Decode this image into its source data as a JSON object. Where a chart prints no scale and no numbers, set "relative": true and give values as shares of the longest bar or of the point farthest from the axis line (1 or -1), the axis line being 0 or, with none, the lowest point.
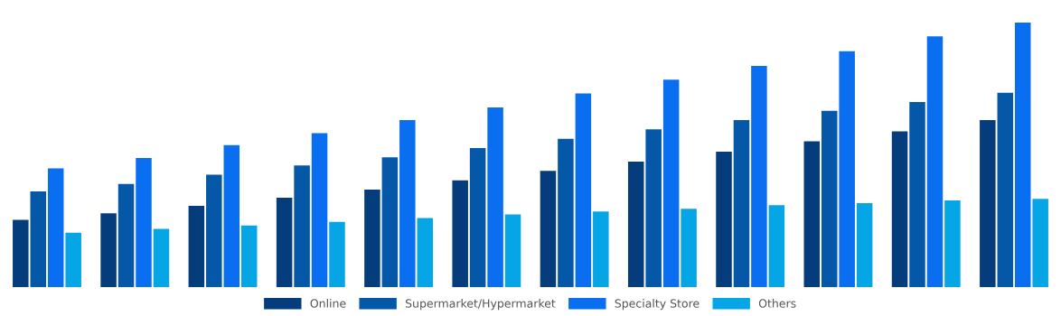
{
  "chart_data": {
    "type": "bar",
    "relative": true,
    "legend": "bottom",
    "grid": false,
    "categories": [
      null,
      null,
      null,
      null,
      null,
      null,
      null,
      null,
      null,
      null,
      null,
      null
    ],
    "series": [
      {
        "name": "Online",
        "color": "#053d7c",
        "values": [
          0.254,
          0.279,
          0.307,
          0.338,
          0.369,
          0.404,
          0.439,
          0.474,
          0.512,
          0.551,
          0.589,
          0.631
        ]
      },
      {
        "name": "Supermarket/Hypermarket",
        "color": "#0557a8",
        "values": [
          0.362,
          0.39,
          0.425,
          0.46,
          0.491,
          0.526,
          0.561,
          0.596,
          0.631,
          0.666,
          0.7,
          0.735
        ]
      },
      {
        "name": "Specialty Store",
        "color": "#0a6ef0",
        "values": [
          0.449,
          0.488,
          0.537,
          0.582,
          0.631,
          0.679,
          0.732,
          0.784,
          0.836,
          0.892,
          0.948,
          1
        ]
      },
      {
        "name": "Others",
        "color": "#06a6e6",
        "values": [
          0.206,
          0.22,
          0.233,
          0.247,
          0.261,
          0.275,
          0.286,
          0.296,
          0.31,
          0.317,
          0.328,
          0.334
        ]
      }
    ]
  }
}
